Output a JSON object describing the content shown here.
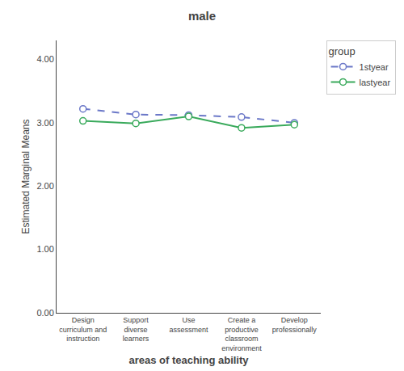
{
  "chart_data": {
    "type": "line",
    "title": "male",
    "xlabel": "areas of teaching ability",
    "ylabel": "Estimated Marginal Means",
    "categories": [
      "Design\ncurriculum and\ninstruction",
      "Support\ndiverse\nlearners",
      "Use\nassessment",
      "Create a\nproductive\nclassroom\nenvironment",
      "Develop\nprofessionally"
    ],
    "series": [
      {
        "name": "1styear",
        "color": "#6b78c8",
        "line_style": "dashed",
        "values": [
          3.22,
          3.13,
          3.12,
          3.09,
          3.0
        ]
      },
      {
        "name": "lastyear",
        "color": "#3aaa5c",
        "line_style": "solid",
        "values": [
          3.03,
          2.99,
          3.1,
          2.92,
          2.97
        ]
      }
    ],
    "marker": "circle",
    "ylim": [
      0.0,
      4.3
    ],
    "yticks": [
      {
        "value": 0.0,
        "label": "0.00"
      },
      {
        "value": 1.0,
        "label": "1.00"
      },
      {
        "value": 2.0,
        "label": "2.00"
      },
      {
        "value": 3.0,
        "label": "3.00"
      },
      {
        "value": 4.0,
        "label": "4.00"
      }
    ],
    "legend_title": "group",
    "legend": "upper right",
    "grid": false
  }
}
